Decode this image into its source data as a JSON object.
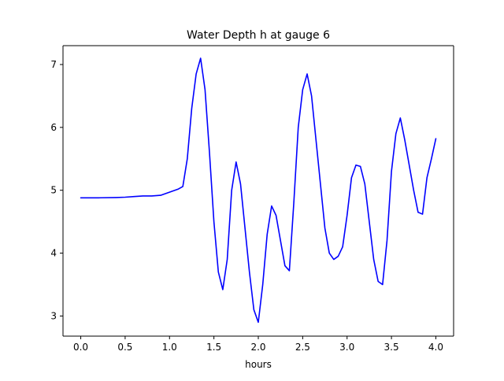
{
  "chart_data": {
    "type": "line",
    "title": "Water Depth h at gauge 6",
    "xlabel": "hours",
    "ylabel": "",
    "xlim": [
      -0.2,
      4.2
    ],
    "ylim": [
      2.68,
      7.3
    ],
    "xticks": [
      0.0,
      0.5,
      1.0,
      1.5,
      2.0,
      2.5,
      3.0,
      3.5,
      4.0
    ],
    "xtick_labels": [
      "0.0",
      "0.5",
      "1.0",
      "1.5",
      "2.0",
      "2.5",
      "3.0",
      "3.5",
      "4.0"
    ],
    "yticks": [
      3,
      4,
      5,
      6,
      7
    ],
    "ytick_labels": [
      "3",
      "4",
      "5",
      "6",
      "7"
    ],
    "grid": false,
    "legend": "none",
    "series": [
      {
        "color": "#0000ff",
        "points": [
          [
            0.0,
            4.88
          ],
          [
            0.2,
            4.88
          ],
          [
            0.4,
            4.885
          ],
          [
            0.5,
            4.89
          ],
          [
            0.6,
            4.9
          ],
          [
            0.7,
            4.91
          ],
          [
            0.8,
            4.91
          ],
          [
            0.9,
            4.92
          ],
          [
            1.0,
            4.97
          ],
          [
            1.1,
            5.02
          ],
          [
            1.15,
            5.06
          ],
          [
            1.2,
            5.5
          ],
          [
            1.25,
            6.3
          ],
          [
            1.3,
            6.85
          ],
          [
            1.35,
            7.1
          ],
          [
            1.4,
            6.6
          ],
          [
            1.45,
            5.6
          ],
          [
            1.5,
            4.5
          ],
          [
            1.55,
            3.7
          ],
          [
            1.6,
            3.42
          ],
          [
            1.65,
            3.9
          ],
          [
            1.7,
            5.0
          ],
          [
            1.75,
            5.45
          ],
          [
            1.8,
            5.1
          ],
          [
            1.85,
            4.4
          ],
          [
            1.9,
            3.7
          ],
          [
            1.95,
            3.1
          ],
          [
            2.0,
            2.9
          ],
          [
            2.05,
            3.5
          ],
          [
            2.1,
            4.3
          ],
          [
            2.15,
            4.75
          ],
          [
            2.2,
            4.6
          ],
          [
            2.25,
            4.2
          ],
          [
            2.3,
            3.8
          ],
          [
            2.35,
            3.72
          ],
          [
            2.4,
            4.8
          ],
          [
            2.45,
            6.0
          ],
          [
            2.5,
            6.6
          ],
          [
            2.55,
            6.85
          ],
          [
            2.6,
            6.5
          ],
          [
            2.65,
            5.8
          ],
          [
            2.7,
            5.1
          ],
          [
            2.75,
            4.4
          ],
          [
            2.8,
            4.0
          ],
          [
            2.85,
            3.9
          ],
          [
            2.9,
            3.95
          ],
          [
            2.95,
            4.1
          ],
          [
            3.0,
            4.6
          ],
          [
            3.05,
            5.2
          ],
          [
            3.1,
            5.4
          ],
          [
            3.15,
            5.38
          ],
          [
            3.2,
            5.1
          ],
          [
            3.25,
            4.5
          ],
          [
            3.3,
            3.9
          ],
          [
            3.35,
            3.55
          ],
          [
            3.4,
            3.5
          ],
          [
            3.45,
            4.2
          ],
          [
            3.5,
            5.3
          ],
          [
            3.55,
            5.9
          ],
          [
            3.6,
            6.15
          ],
          [
            3.65,
            5.8
          ],
          [
            3.7,
            5.4
          ],
          [
            3.75,
            5.0
          ],
          [
            3.8,
            4.65
          ],
          [
            3.85,
            4.62
          ],
          [
            3.9,
            5.2
          ],
          [
            3.95,
            5.5
          ],
          [
            4.0,
            5.82
          ]
        ]
      }
    ]
  }
}
